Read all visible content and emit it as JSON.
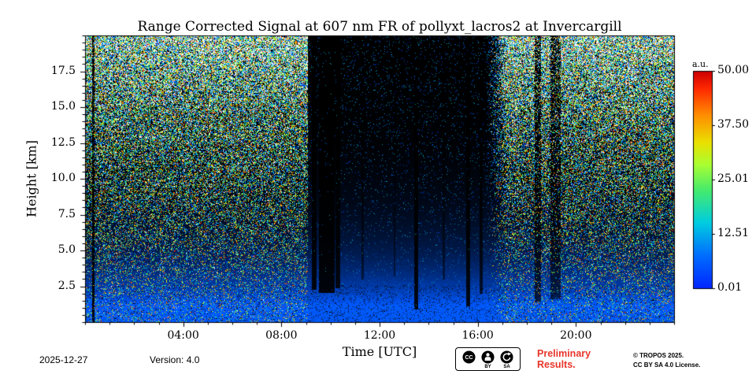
{
  "chart_data": {
    "type": "heatmap",
    "title": "Range Corrected Signal at 607 nm FR of pollyxt_lacros2 at Invercargill",
    "xlabel": "Time [UTC]",
    "ylabel": "Height [km]",
    "x_range_hours": [
      0,
      24
    ],
    "y_range_km": [
      0,
      20
    ],
    "x_ticks": [
      {
        "hour": 4,
        "label": "04:00"
      },
      {
        "hour": 8,
        "label": "08:00"
      },
      {
        "hour": 12,
        "label": "12:00"
      },
      {
        "hour": 16,
        "label": "16:00"
      },
      {
        "hour": 20,
        "label": "20:00"
      }
    ],
    "x_minor_tick_hours": 1,
    "y_ticks": [
      {
        "km": 2.5,
        "label": "2.5"
      },
      {
        "km": 5.0,
        "label": "5.0"
      },
      {
        "km": 7.5,
        "label": "7.5"
      },
      {
        "km": 10.0,
        "label": "10.0"
      },
      {
        "km": 12.5,
        "label": "12.5"
      },
      {
        "km": 15.0,
        "label": "15.0"
      },
      {
        "km": 17.5,
        "label": "17.5"
      }
    ],
    "y_minor_tick_km": 0.5,
    "colorbar": {
      "label": "a.u.",
      "min": 0.01,
      "max": 50.0,
      "colormap": "jet-like",
      "ticks": [
        {
          "value": 50.0,
          "label": "50.00"
        },
        {
          "value": 37.5,
          "label": "37.50"
        },
        {
          "value": 25.01,
          "label": "25.01"
        },
        {
          "value": 12.51,
          "label": "12.51"
        },
        {
          "value": 0.01,
          "label": "0.01"
        }
      ]
    },
    "scene": {
      "description": "Lidar range-corrected signal quicklook: bright blue aerosol signal below ~2.5 km decaying to black by ~8 km; dense multicolor photon noise at all heights during daylight (00:00-09:00 and ~16:30-24:00); low-noise dark background 09:00-16:30; cloud attenuation streaks near 09:15-10:25, 13:25, 15:35 and a full-height mark at ~00:20.",
      "daylight_noise_hours": [
        [
          0,
          9.05
        ],
        [
          16.5,
          24
        ]
      ],
      "dark_low_noise_hours": [
        9.05,
        16.5
      ],
      "surface_layer_top_km": 2.3,
      "signal_black_above_km": 8,
      "attenuation_streaks": [
        {
          "hours": [
            0.27,
            0.36
          ],
          "above_km": 0,
          "strength": 0.06
        },
        {
          "hours": [
            9.22,
            9.42
          ],
          "above_km": 2.3,
          "strength": 0.1
        },
        {
          "hours": [
            9.5,
            10.15
          ],
          "above_km": 2.05,
          "strength": 0.07
        },
        {
          "hours": [
            10.18,
            10.38
          ],
          "above_km": 2.4,
          "strength": 0.12
        },
        {
          "hours": [
            11.25,
            11.34
          ],
          "above_km": 3.0,
          "strength": 0.45
        },
        {
          "hours": [
            12.55,
            12.64
          ],
          "above_km": 3.2,
          "strength": 0.5
        },
        {
          "hours": [
            13.38,
            13.56
          ],
          "above_km": 0.9,
          "strength": 0.1
        },
        {
          "hours": [
            14.55,
            14.64
          ],
          "above_km": 3.0,
          "strength": 0.5
        },
        {
          "hours": [
            15.52,
            15.68
          ],
          "above_km": 1.1,
          "strength": 0.12
        },
        {
          "hours": [
            16.05,
            16.2
          ],
          "above_km": 2.0,
          "strength": 0.25
        },
        {
          "hours": [
            18.3,
            18.55
          ],
          "above_km": 1.4,
          "strength": 0.35
        },
        {
          "hours": [
            18.95,
            19.35
          ],
          "above_km": 1.6,
          "strength": 0.4
        }
      ]
    }
  },
  "footer": {
    "date": "2025-12-27",
    "version": "Version: 4.0",
    "preliminary": "Preliminary Results.",
    "copyright_line1": "© TROPOS 2025.",
    "copyright_line2": "CC BY SA 4.0 License.",
    "cc": {
      "cc_text": "CC",
      "by_label": "BY",
      "sa_label": "SA"
    }
  }
}
